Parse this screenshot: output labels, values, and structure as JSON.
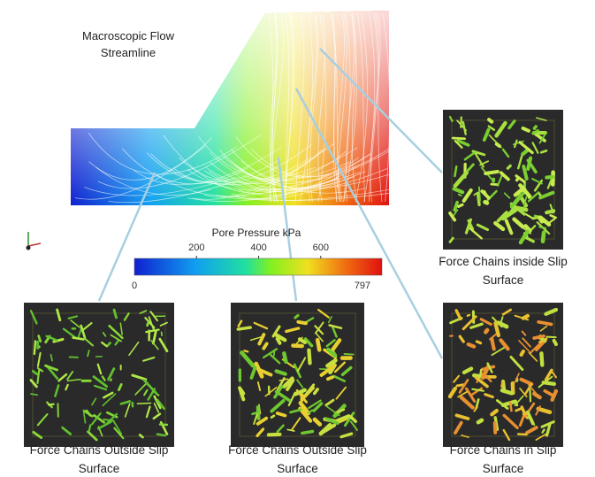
{
  "flow_title": [
    "Macroscopic Flow",
    "Streamline"
  ],
  "colorbar": {
    "title": "Pore Pressure kPa",
    "min": 0,
    "max": 797,
    "ticks": [
      200,
      400,
      600
    ]
  },
  "panels": [
    {
      "caption": [
        "Force Chains inside Slip",
        "Surface"
      ]
    },
    {
      "caption": [
        "Force Chains Outside Slip",
        "Surface"
      ]
    },
    {
      "caption": [
        "Force Chains Outside Slip",
        "Surface"
      ]
    },
    {
      "caption": [
        "Force Chains in Slip",
        "Surface"
      ]
    }
  ]
}
